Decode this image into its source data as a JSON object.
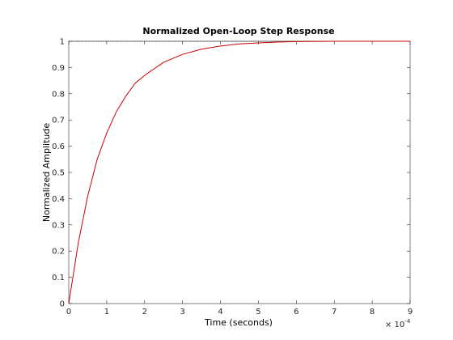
{
  "chart_data": {
    "type": "line",
    "title": "Normalized Open-Loop Step Response",
    "xlabel": "Time (seconds)",
    "ylabel": "Normalized Amplitude",
    "x_multiplier_label": "× 10",
    "x_multiplier_exponent": "-4",
    "xlim": [
      0,
      9
    ],
    "ylim": [
      0,
      1
    ],
    "xticks": [
      "0",
      "1",
      "2",
      "3",
      "4",
      "5",
      "6",
      "7",
      "8",
      "9"
    ],
    "yticks": [
      "0",
      "0.1",
      "0.2",
      "0.3",
      "0.4",
      "0.5",
      "0.6",
      "0.7",
      "0.8",
      "0.9",
      "1"
    ],
    "grid": false,
    "reference_line_y": 1,
    "series": [
      {
        "color": "#cc0000",
        "x": [
          0,
          0.25,
          0.5,
          0.75,
          1.0,
          1.25,
          1.5,
          1.75,
          2.0,
          2.5,
          3.0,
          3.5,
          4.0,
          4.5,
          5.0,
          5.5,
          6.0,
          7.0,
          8.0,
          9.0
        ],
        "y": [
          0,
          0.23,
          0.41,
          0.55,
          0.65,
          0.73,
          0.79,
          0.84,
          0.87,
          0.92,
          0.95,
          0.97,
          0.982,
          0.99,
          0.994,
          0.997,
          0.999,
          1.0,
          1.0,
          1.0
        ]
      }
    ]
  }
}
